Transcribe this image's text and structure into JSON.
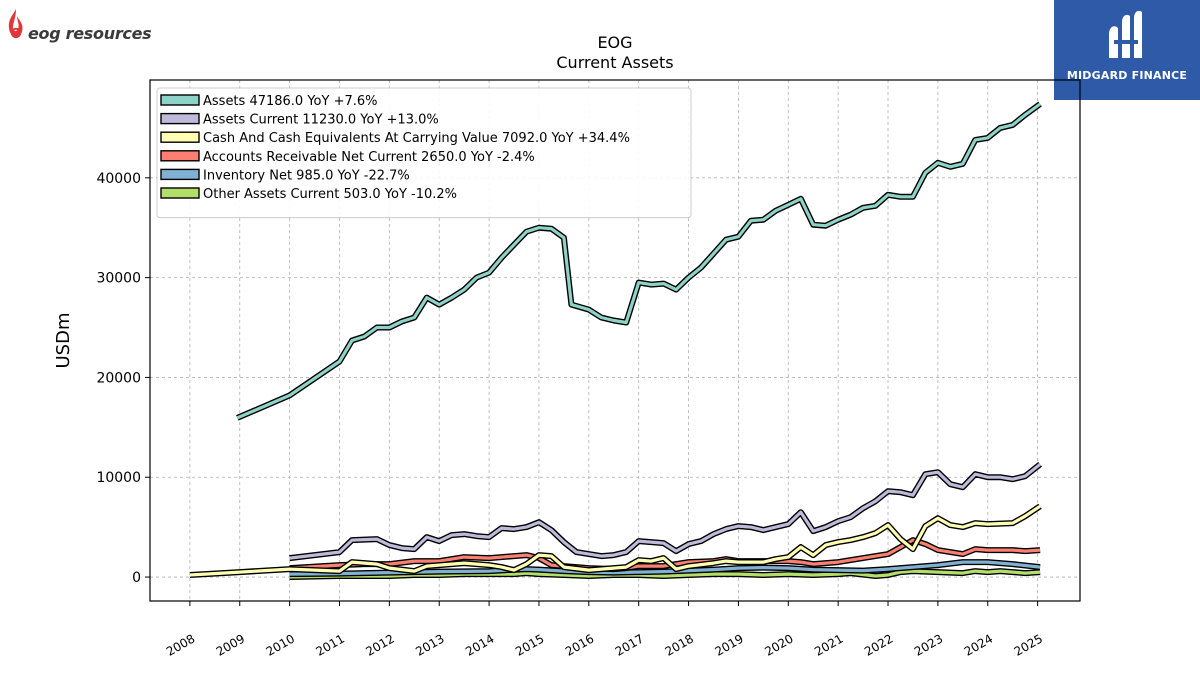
{
  "brand": {
    "left_logo_text": "eog resources",
    "right_logo_text": "MIDGARD FINANCE",
    "right_bg": "#2e5aa8"
  },
  "chart_data": {
    "type": "line",
    "title": "EOG",
    "subtitle": "Current  Assets",
    "ylabel": "USDm",
    "xlabel": "",
    "xlim": [
      2007.2,
      2025.85
    ],
    "ylim": [
      -2400,
      49800
    ],
    "yticks": [
      0,
      10000,
      20000,
      30000,
      40000
    ],
    "xticks": [
      2008,
      2009,
      2010,
      2011,
      2012,
      2013,
      2014,
      2015,
      2016,
      2017,
      2018,
      2019,
      2020,
      2021,
      2022,
      2023,
      2024,
      2025
    ],
    "grid": true,
    "legend_position": "top-left",
    "series": [
      {
        "name": "Assets  47186.0 YoY +7.6%",
        "color": "#8dd3c7",
        "points": [
          [
            2008.95,
            15950
          ],
          [
            2010.0,
            18200
          ],
          [
            2011.0,
            21600
          ],
          [
            2011.25,
            23700
          ],
          [
            2011.5,
            24100
          ],
          [
            2011.75,
            25000
          ],
          [
            2012.0,
            25000
          ],
          [
            2012.25,
            25600
          ],
          [
            2012.5,
            26000
          ],
          [
            2012.75,
            28000
          ],
          [
            2013.0,
            27300
          ],
          [
            2013.25,
            28000
          ],
          [
            2013.5,
            28800
          ],
          [
            2013.75,
            30000
          ],
          [
            2014.0,
            30500
          ],
          [
            2014.25,
            32000
          ],
          [
            2014.5,
            33300
          ],
          [
            2014.75,
            34600
          ],
          [
            2015.0,
            35000
          ],
          [
            2015.25,
            34900
          ],
          [
            2015.5,
            34000
          ],
          [
            2015.65,
            27300
          ],
          [
            2016.0,
            26800
          ],
          [
            2016.25,
            26000
          ],
          [
            2016.5,
            25700
          ],
          [
            2016.75,
            25500
          ],
          [
            2017.0,
            29500
          ],
          [
            2017.25,
            29300
          ],
          [
            2017.5,
            29400
          ],
          [
            2017.75,
            28800
          ],
          [
            2018.0,
            30000
          ],
          [
            2018.25,
            31000
          ],
          [
            2018.5,
            32400
          ],
          [
            2018.75,
            33800
          ],
          [
            2019.0,
            34100
          ],
          [
            2019.25,
            35700
          ],
          [
            2019.5,
            35800
          ],
          [
            2019.75,
            36700
          ],
          [
            2020.0,
            37300
          ],
          [
            2020.25,
            37900
          ],
          [
            2020.5,
            35300
          ],
          [
            2020.75,
            35200
          ],
          [
            2021.0,
            35800
          ],
          [
            2021.25,
            36300
          ],
          [
            2021.5,
            37000
          ],
          [
            2021.75,
            37200
          ],
          [
            2022.0,
            38300
          ],
          [
            2022.25,
            38100
          ],
          [
            2022.5,
            38100
          ],
          [
            2022.75,
            40500
          ],
          [
            2023.0,
            41500
          ],
          [
            2023.25,
            41100
          ],
          [
            2023.5,
            41400
          ],
          [
            2023.75,
            43800
          ],
          [
            2024.0,
            44000
          ],
          [
            2024.25,
            45000
          ],
          [
            2024.5,
            45300
          ],
          [
            2024.75,
            46300
          ],
          [
            2025.05,
            47400
          ]
        ]
      },
      {
        "name": "Assets Current  11230.0 YoY +13.0%",
        "color": "#bebada",
        "points": [
          [
            2010.0,
            1900
          ],
          [
            2011.0,
            2500
          ],
          [
            2011.25,
            3700
          ],
          [
            2011.75,
            3800
          ],
          [
            2012.0,
            3200
          ],
          [
            2012.25,
            2900
          ],
          [
            2012.5,
            2800
          ],
          [
            2012.75,
            4000
          ],
          [
            2013.0,
            3600
          ],
          [
            2013.25,
            4200
          ],
          [
            2013.5,
            4300
          ],
          [
            2013.75,
            4100
          ],
          [
            2014.0,
            4000
          ],
          [
            2014.25,
            4900
          ],
          [
            2014.5,
            4800
          ],
          [
            2014.75,
            5000
          ],
          [
            2015.0,
            5500
          ],
          [
            2015.25,
            4700
          ],
          [
            2015.5,
            3500
          ],
          [
            2015.75,
            2500
          ],
          [
            2016.0,
            2300
          ],
          [
            2016.25,
            2100
          ],
          [
            2016.5,
            2200
          ],
          [
            2016.75,
            2500
          ],
          [
            2017.0,
            3600
          ],
          [
            2017.25,
            3500
          ],
          [
            2017.5,
            3400
          ],
          [
            2017.75,
            2600
          ],
          [
            2018.0,
            3300
          ],
          [
            2018.25,
            3600
          ],
          [
            2018.5,
            4300
          ],
          [
            2018.75,
            4800
          ],
          [
            2019.0,
            5100
          ],
          [
            2019.25,
            5000
          ],
          [
            2019.5,
            4700
          ],
          [
            2019.75,
            5000
          ],
          [
            2020.0,
            5300
          ],
          [
            2020.25,
            6500
          ],
          [
            2020.5,
            4600
          ],
          [
            2020.75,
            5000
          ],
          [
            2021.0,
            5600
          ],
          [
            2021.25,
            6000
          ],
          [
            2021.5,
            6900
          ],
          [
            2021.75,
            7600
          ],
          [
            2022.0,
            8600
          ],
          [
            2022.25,
            8500
          ],
          [
            2022.5,
            8200
          ],
          [
            2022.75,
            10300
          ],
          [
            2023.0,
            10500
          ],
          [
            2023.25,
            9300
          ],
          [
            2023.5,
            9000
          ],
          [
            2023.75,
            10300
          ],
          [
            2024.0,
            10000
          ],
          [
            2024.25,
            10000
          ],
          [
            2024.5,
            9800
          ],
          [
            2024.75,
            10100
          ],
          [
            2025.05,
            11300
          ]
        ]
      },
      {
        "name": "Cash And Cash Equivalents At Carrying Value  7092.0 YoY +34.4%",
        "color": "#ffffb3",
        "points": [
          [
            2008.0,
            200
          ],
          [
            2009.0,
            500
          ],
          [
            2010.0,
            800
          ],
          [
            2011.0,
            600
          ],
          [
            2011.25,
            1500
          ],
          [
            2011.75,
            1300
          ],
          [
            2012.0,
            900
          ],
          [
            2012.5,
            600
          ],
          [
            2012.75,
            1100
          ],
          [
            2013.0,
            1200
          ],
          [
            2013.5,
            1400
          ],
          [
            2014.0,
            1200
          ],
          [
            2014.25,
            1000
          ],
          [
            2014.5,
            700
          ],
          [
            2014.75,
            1300
          ],
          [
            2015.0,
            2200
          ],
          [
            2015.25,
            2100
          ],
          [
            2015.5,
            1000
          ],
          [
            2016.0,
            700
          ],
          [
            2016.5,
            900
          ],
          [
            2016.75,
            1000
          ],
          [
            2017.0,
            1700
          ],
          [
            2017.25,
            1600
          ],
          [
            2017.5,
            1900
          ],
          [
            2017.75,
            800
          ],
          [
            2018.0,
            1100
          ],
          [
            2018.5,
            1400
          ],
          [
            2018.75,
            1600
          ],
          [
            2019.0,
            1500
          ],
          [
            2019.25,
            1500
          ],
          [
            2019.5,
            1500
          ],
          [
            2019.75,
            1800
          ],
          [
            2020.0,
            2000
          ],
          [
            2020.25,
            3000
          ],
          [
            2020.5,
            2200
          ],
          [
            2020.75,
            3200
          ],
          [
            2021.0,
            3500
          ],
          [
            2021.25,
            3700
          ],
          [
            2021.5,
            4000
          ],
          [
            2021.75,
            4400
          ],
          [
            2022.0,
            5200
          ],
          [
            2022.25,
            3800
          ],
          [
            2022.5,
            2800
          ],
          [
            2022.75,
            5100
          ],
          [
            2023.0,
            5900
          ],
          [
            2023.25,
            5200
          ],
          [
            2023.5,
            5000
          ],
          [
            2023.75,
            5400
          ],
          [
            2024.0,
            5300
          ],
          [
            2024.5,
            5400
          ],
          [
            2024.75,
            6100
          ],
          [
            2025.05,
            7100
          ]
        ]
      },
      {
        "name": "Accounts Receivable Net Current  2650.0 YoY -2.4%",
        "color": "#fb8072",
        "points": [
          [
            2010.0,
            900
          ],
          [
            2011.0,
            1200
          ],
          [
            2011.5,
            1300
          ],
          [
            2012.0,
            1300
          ],
          [
            2012.5,
            1600
          ],
          [
            2013.0,
            1600
          ],
          [
            2013.5,
            2000
          ],
          [
            2014.0,
            1900
          ],
          [
            2014.5,
            2100
          ],
          [
            2014.75,
            2200
          ],
          [
            2015.0,
            1900
          ],
          [
            2015.25,
            1200
          ],
          [
            2015.5,
            1100
          ],
          [
            2016.0,
            900
          ],
          [
            2016.5,
            800
          ],
          [
            2016.75,
            900
          ],
          [
            2017.0,
            1100
          ],
          [
            2017.5,
            1100
          ],
          [
            2018.0,
            1500
          ],
          [
            2018.5,
            1600
          ],
          [
            2018.75,
            1800
          ],
          [
            2019.0,
            1600
          ],
          [
            2019.5,
            1600
          ],
          [
            2020.0,
            1600
          ],
          [
            2020.25,
            1500
          ],
          [
            2020.5,
            1300
          ],
          [
            2020.75,
            1400
          ],
          [
            2021.0,
            1500
          ],
          [
            2021.5,
            1900
          ],
          [
            2022.0,
            2300
          ],
          [
            2022.25,
            3000
          ],
          [
            2022.5,
            3700
          ],
          [
            2022.75,
            3300
          ],
          [
            2023.0,
            2700
          ],
          [
            2023.5,
            2300
          ],
          [
            2023.75,
            2800
          ],
          [
            2024.0,
            2700
          ],
          [
            2024.5,
            2700
          ],
          [
            2024.75,
            2600
          ],
          [
            2025.05,
            2700
          ]
        ]
      },
      {
        "name": "Inventory Net  985.0 YoY -22.7%",
        "color": "#80b1d3",
        "points": [
          [
            2010.0,
            300
          ],
          [
            2011.0,
            350
          ],
          [
            2012.0,
            450
          ],
          [
            2013.0,
            550
          ],
          [
            2014.0,
            600
          ],
          [
            2014.75,
            800
          ],
          [
            2015.0,
            750
          ],
          [
            2015.5,
            600
          ],
          [
            2016.0,
            500
          ],
          [
            2016.5,
            450
          ],
          [
            2017.0,
            500
          ],
          [
            2017.5,
            550
          ],
          [
            2018.0,
            650
          ],
          [
            2018.5,
            750
          ],
          [
            2019.0,
            900
          ],
          [
            2019.5,
            950
          ],
          [
            2020.0,
            900
          ],
          [
            2020.5,
            750
          ],
          [
            2021.0,
            700
          ],
          [
            2021.5,
            650
          ],
          [
            2022.0,
            800
          ],
          [
            2022.5,
            1000
          ],
          [
            2023.0,
            1200
          ],
          [
            2023.5,
            1500
          ],
          [
            2024.0,
            1500
          ],
          [
            2024.5,
            1300
          ],
          [
            2025.05,
            1000
          ]
        ]
      },
      {
        "name": "Other Assets Current  503.0 YoY -10.2%",
        "color": "#b3de69",
        "points": [
          [
            2010.0,
            0
          ],
          [
            2011.0,
            100
          ],
          [
            2012.0,
            100
          ],
          [
            2012.5,
            200
          ],
          [
            2013.0,
            200
          ],
          [
            2013.5,
            300
          ],
          [
            2014.0,
            300
          ],
          [
            2014.5,
            300
          ],
          [
            2014.75,
            400
          ],
          [
            2015.0,
            300
          ],
          [
            2015.5,
            200
          ],
          [
            2016.0,
            100
          ],
          [
            2016.5,
            200
          ],
          [
            2017.0,
            200
          ],
          [
            2017.5,
            100
          ],
          [
            2018.0,
            200
          ],
          [
            2018.5,
            300
          ],
          [
            2019.0,
            300
          ],
          [
            2019.5,
            200
          ],
          [
            2020.0,
            300
          ],
          [
            2020.5,
            200
          ],
          [
            2021.0,
            300
          ],
          [
            2021.25,
            400
          ],
          [
            2021.75,
            100
          ],
          [
            2022.0,
            200
          ],
          [
            2022.25,
            500
          ],
          [
            2022.5,
            600
          ],
          [
            2023.0,
            500
          ],
          [
            2023.5,
            400
          ],
          [
            2023.75,
            600
          ],
          [
            2024.0,
            500
          ],
          [
            2024.25,
            600
          ],
          [
            2024.5,
            500
          ],
          [
            2024.75,
            400
          ],
          [
            2025.05,
            500
          ]
        ]
      }
    ]
  }
}
